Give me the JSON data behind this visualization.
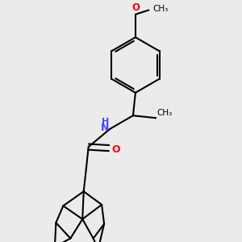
{
  "background_color": "#ebebeb",
  "bond_color": "#000000",
  "nitrogen_color": "#4444ff",
  "oxygen_color": "#ff0000",
  "line_width": 1.5,
  "fig_size": [
    3.0,
    3.0
  ],
  "dpi": 100,
  "xlim": [
    0.0,
    1.0
  ],
  "ylim": [
    0.0,
    1.0
  ]
}
